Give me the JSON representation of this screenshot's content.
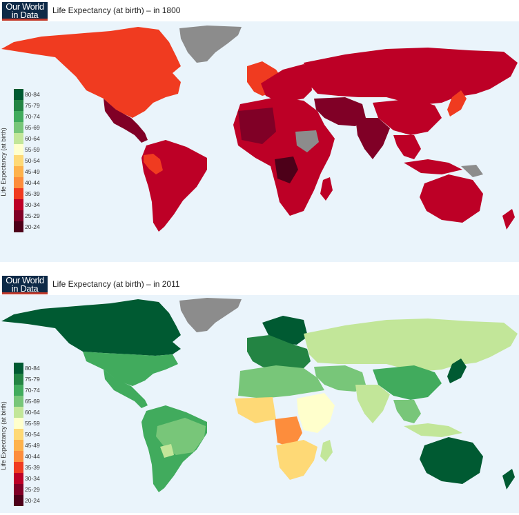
{
  "logo": {
    "line1": "Our World",
    "line2": "in Data"
  },
  "legend": {
    "title": "Life Expectancy (at birth)",
    "bins": [
      {
        "label": "80-84",
        "color": "#005a32"
      },
      {
        "label": "75-79",
        "color": "#238443"
      },
      {
        "label": "70-74",
        "color": "#41ab5d"
      },
      {
        "label": "65-69",
        "color": "#78c679"
      },
      {
        "label": "60-64",
        "color": "#c2e699"
      },
      {
        "label": "55-59",
        "color": "#ffffcc"
      },
      {
        "label": "50-54",
        "color": "#fed976"
      },
      {
        "label": "45-49",
        "color": "#feb24c"
      },
      {
        "label": "40-44",
        "color": "#fd8d3c"
      },
      {
        "label": "35-39",
        "color": "#f03b20"
      },
      {
        "label": "30-34",
        "color": "#bd0026"
      },
      {
        "label": "25-29",
        "color": "#800026"
      },
      {
        "label": "20-24",
        "color": "#4d0019"
      }
    ]
  },
  "colors": {
    "ocean": "#eaf4fb",
    "no_data": "#8c8c8c"
  },
  "maps": [
    {
      "title": "Life Expectancy (at birth) – in 1800",
      "year": 1800,
      "regions": {
        "north_america": "35-39",
        "greenland": "no data",
        "mexico_central_america": "25-29",
        "south_america": "30-34",
        "peru": "35-39",
        "europe": "30-34",
        "western_europe": "35-39",
        "russia_asia": "30-34",
        "middle_east": "25-29",
        "india": "25-29",
        "china": "30-34",
        "japan": "35-39",
        "africa": "30-34",
        "sahara_west": "25-29",
        "central_africa": "25-29",
        "ethiopia": "no data",
        "southeast_asia": "30-34",
        "australia": "30-34",
        "new_guinea": "no data"
      }
    },
    {
      "title": "Life Expectancy (at birth) – in 2011",
      "year": 2011,
      "regions": {
        "north_america": "75-79",
        "canada": "80-84",
        "greenland": "no data",
        "mexico_central_america": "75-79",
        "south_america": "70-74",
        "brazil": "70-74",
        "bolivia": "65-69",
        "chile_argentina": "75-79",
        "europe": "75-79",
        "northern_europe": "80-84",
        "russia_asia": "65-69",
        "middle_east": "70-74",
        "india": "65-69",
        "china": "70-74",
        "japan": "80-84",
        "north_africa": "70-74",
        "west_africa": "50-54",
        "central_africa": "45-49",
        "southern_africa": "50-54",
        "east_africa": "55-59",
        "southeast_asia": "70-74",
        "australia": "80-84",
        "new_zealand": "80-84"
      }
    }
  ]
}
